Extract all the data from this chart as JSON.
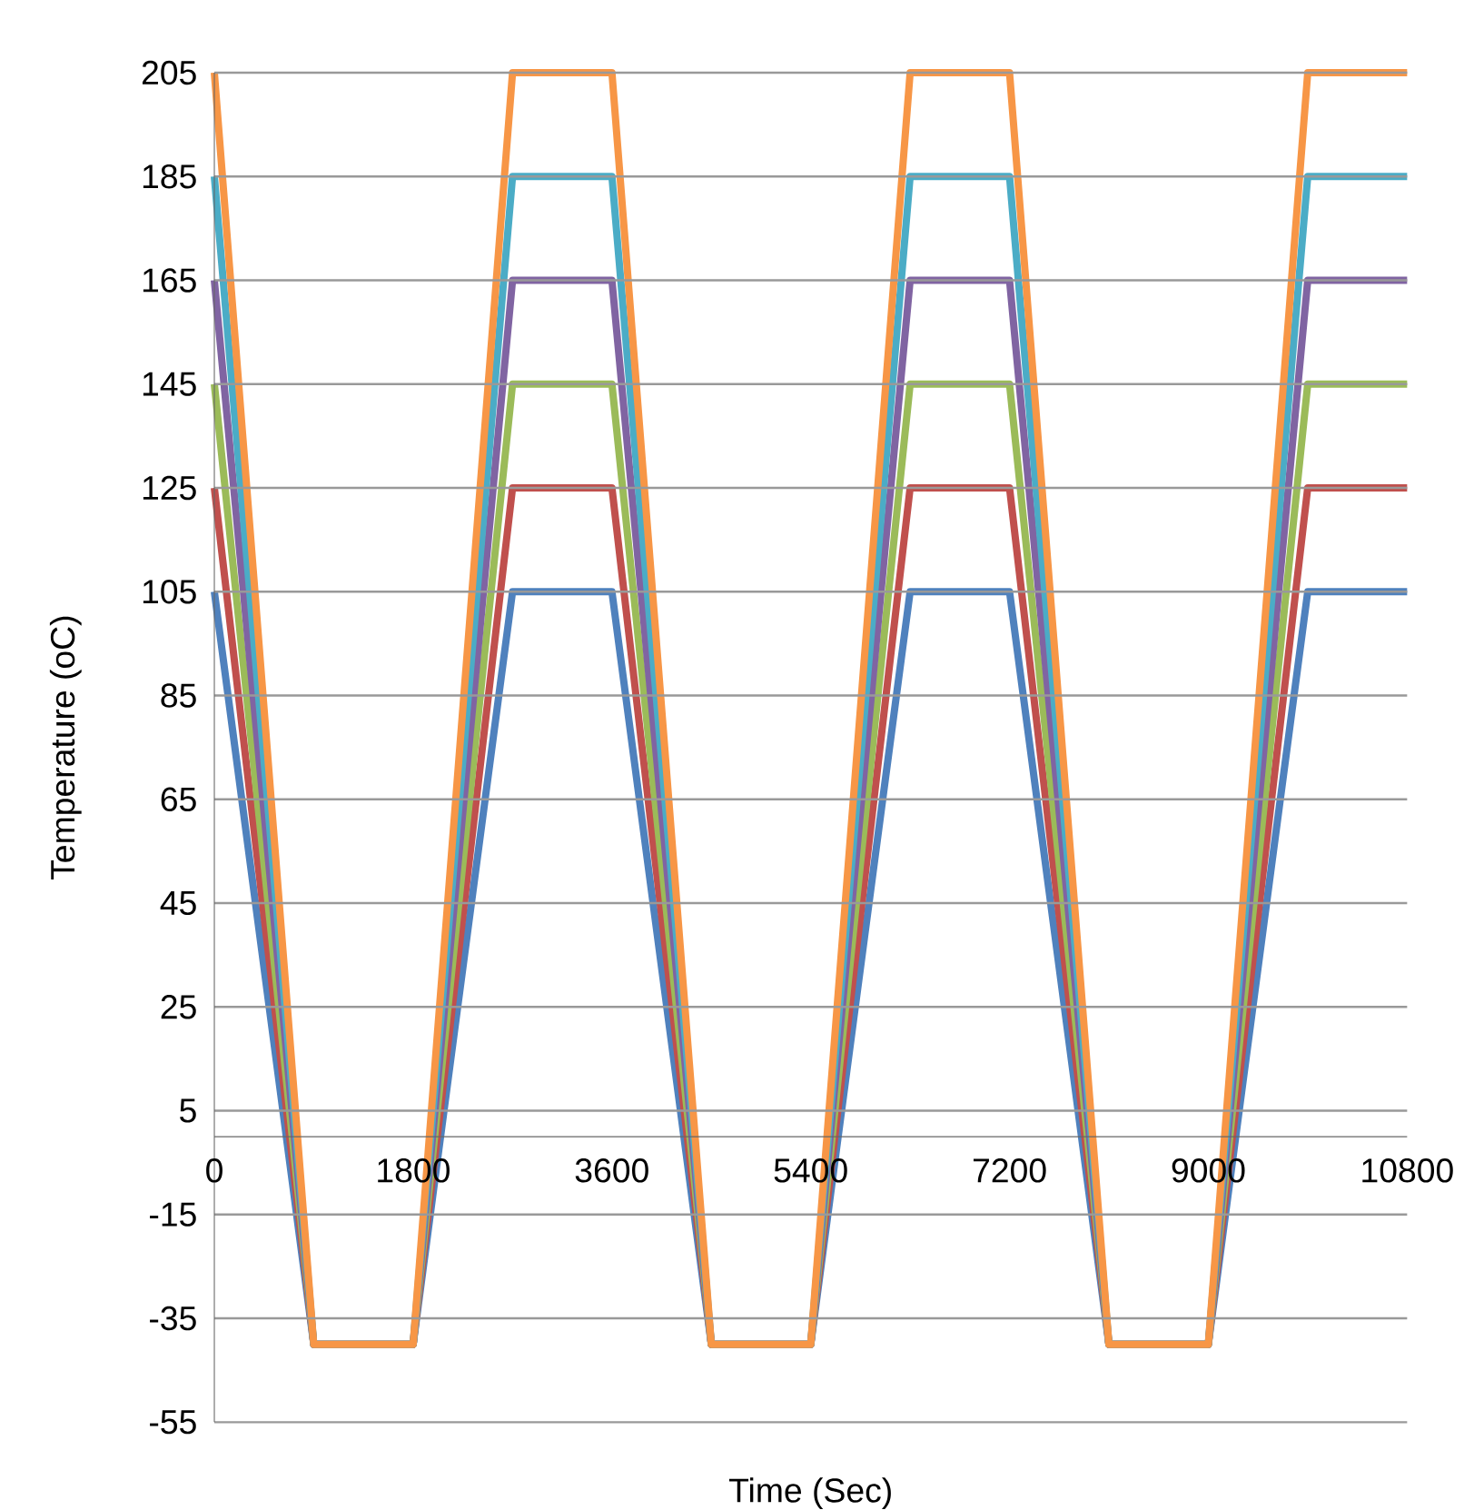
{
  "chart_data": {
    "type": "line",
    "xlabel": "Time (Sec)",
    "ylabel": "Temperature (oC)",
    "x": [
      0,
      900,
      1800,
      2700,
      3600,
      4500,
      5400,
      6300,
      7200,
      8100,
      9000,
      9900,
      10800
    ],
    "series": [
      {
        "color": "#4f81bd",
        "values": [
          105,
          -40,
          -40,
          105,
          105,
          -40,
          -40,
          105,
          105,
          -40,
          -40,
          105,
          105
        ]
      },
      {
        "color": "#c0504d",
        "values": [
          125,
          -40,
          -40,
          125,
          125,
          -40,
          -40,
          125,
          125,
          -40,
          -40,
          125,
          125
        ]
      },
      {
        "color": "#9bbb59",
        "values": [
          145,
          -40,
          -40,
          145,
          145,
          -40,
          -40,
          145,
          145,
          -40,
          -40,
          145,
          145
        ]
      },
      {
        "color": "#8064a2",
        "values": [
          165,
          -40,
          -40,
          165,
          165,
          -40,
          -40,
          165,
          165,
          -40,
          -40,
          165,
          165
        ]
      },
      {
        "color": "#4bacc6",
        "values": [
          185,
          -40,
          -40,
          185,
          185,
          -40,
          -40,
          185,
          185,
          -40,
          -40,
          185,
          185
        ]
      },
      {
        "color": "#f79646",
        "values": [
          205,
          -40,
          -40,
          205,
          205,
          -40,
          -40,
          205,
          205,
          -40,
          -40,
          205,
          205
        ]
      }
    ],
    "xlim": [
      0,
      10800
    ],
    "ylim": [
      -55,
      205
    ],
    "xticks": [
      0,
      1800,
      3600,
      5400,
      7200,
      9000,
      10800
    ],
    "yticks": [
      -55,
      -35,
      -15,
      5,
      25,
      45,
      65,
      85,
      105,
      125,
      145,
      165,
      185,
      205
    ],
    "grid": "y"
  }
}
